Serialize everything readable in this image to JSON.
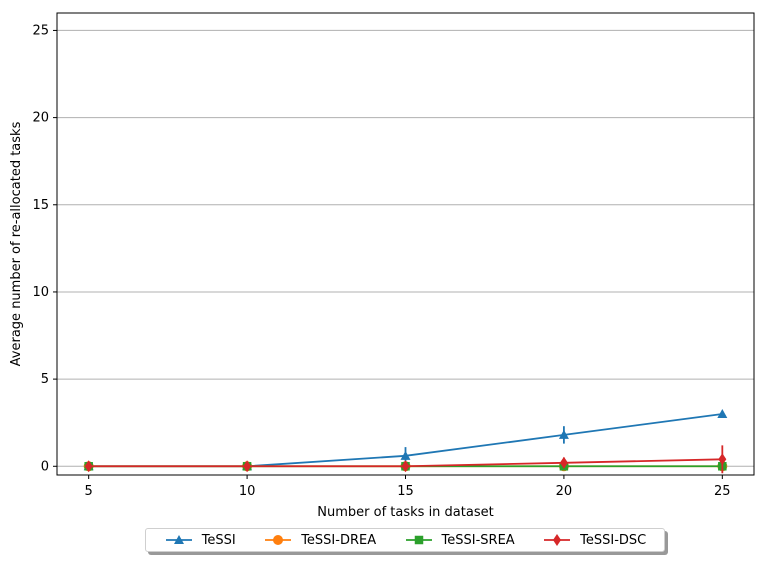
{
  "chart_data": {
    "type": "line",
    "title": "",
    "xlabel": "Number of tasks in dataset",
    "ylabel": "Average number of re-allocated tasks",
    "x": [
      5,
      10,
      15,
      20,
      25
    ],
    "xticks": [
      "5",
      "10",
      "15",
      "20",
      "25"
    ],
    "yticks": [
      "0",
      "5",
      "10",
      "15",
      "20",
      "25"
    ],
    "xlim": [
      4,
      26
    ],
    "ylim": [
      -0.5,
      26
    ],
    "grid": "horizontal",
    "legend_position": "bottom-center",
    "series": [
      {
        "name": "TeSSI",
        "color": "#1f77b4",
        "marker": "triangle",
        "values": [
          0,
          0,
          0.6,
          1.8,
          3.0
        ],
        "errors": [
          0,
          0,
          0.5,
          0.5,
          0
        ]
      },
      {
        "name": "TeSSI-DREA",
        "color": "#ff7f0e",
        "marker": "circle",
        "values": [
          0,
          0,
          0,
          0,
          0
        ],
        "errors": [
          0,
          0,
          0,
          0,
          0
        ]
      },
      {
        "name": "TeSSI-SREA",
        "color": "#2ca02c",
        "marker": "square",
        "values": [
          0,
          0,
          0,
          0,
          0
        ],
        "errors": [
          0,
          0,
          0,
          0,
          0
        ]
      },
      {
        "name": "TeSSI-DSC",
        "color": "#d62728",
        "marker": "diamond",
        "values": [
          0,
          0,
          0,
          0.2,
          0.4
        ],
        "errors": [
          0,
          0,
          0,
          0.3,
          0.8
        ]
      }
    ]
  }
}
